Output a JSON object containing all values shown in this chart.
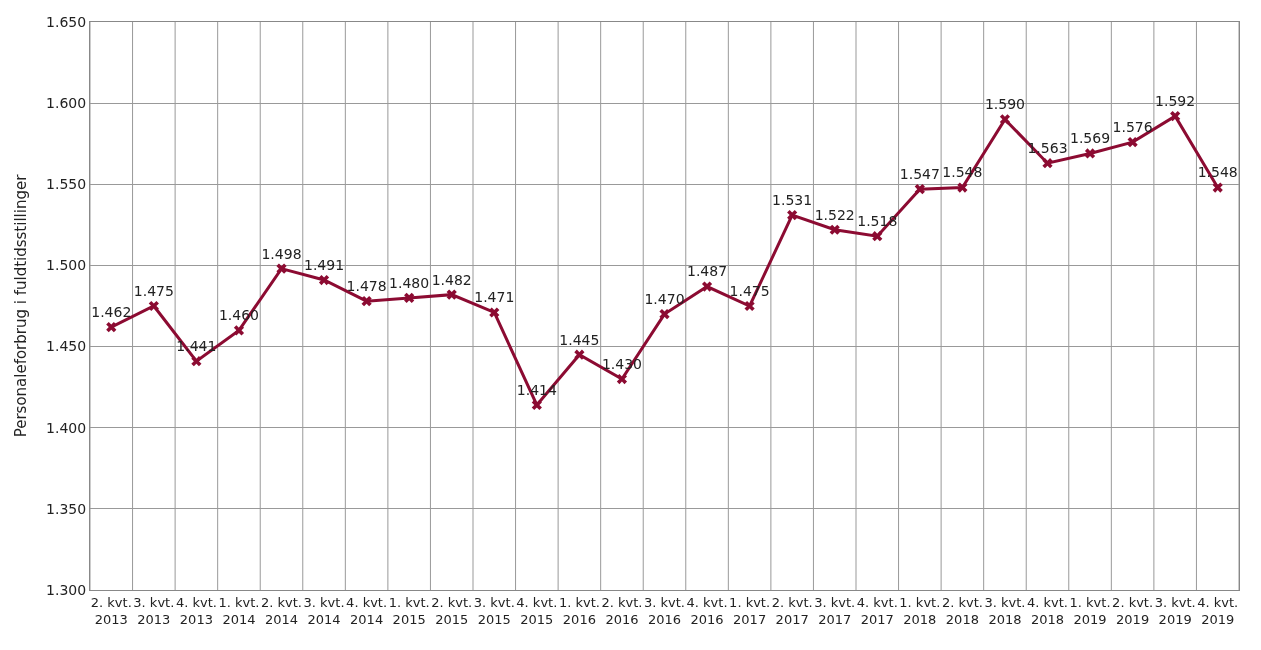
{
  "chart_data": {
    "type": "line",
    "ylabel": "Personaleforbrug i fuldtidsstillinger",
    "categories": [
      "2. kvt.\n2013",
      "3. kvt.\n2013",
      "4. kvt.\n2013",
      "1. kvt.\n2014",
      "2. kvt.\n2014",
      "3. kvt.\n2014",
      "4. kvt.\n2014",
      "1. kvt.\n2015",
      "2. kvt.\n2015",
      "3. kvt.\n2015",
      "4. kvt.\n2015",
      "1. kvt.\n2016",
      "2. kvt.\n2016",
      "3. kvt.\n2016",
      "4. kvt.\n2016",
      "1. kvt.\n2017",
      "2. kvt.\n2017",
      "3. kvt.\n2017",
      "4. kvt.\n2017",
      "1. kvt.\n2018",
      "2. kvt.\n2018",
      "3. kvt.\n2018",
      "4. kvt.\n2018",
      "1. kvt.\n2019",
      "2. kvt.\n2019",
      "3. kvt.\n2019",
      "4. kvt.\n2019"
    ],
    "series": [
      {
        "color": "#8c0b32",
        "values": [
          1462,
          1475,
          1441,
          1460,
          1498,
          1491,
          1478,
          1480,
          1482,
          1471,
          1414,
          1445,
          1430,
          1470,
          1487,
          1475,
          1531,
          1522,
          1518,
          1547,
          1548,
          1590,
          1563,
          1569,
          1576,
          1592,
          1548
        ],
        "value_labels": [
          "1.462",
          "1.475",
          "1.441",
          "1.460",
          "1.498",
          "1.491",
          "1.478",
          "1.480",
          "1.482",
          "1.471",
          "1.414",
          "1.445",
          "1.430",
          "1.470",
          "1.487",
          "1.475",
          "1.531",
          "1.522",
          "1.518",
          "1.547",
          "1.548",
          "1.590",
          "1.563",
          "1.569",
          "1.576",
          "1.592",
          "1.548"
        ]
      }
    ],
    "ylim": [
      1300,
      1650
    ],
    "yticks": [
      {
        "value": 1300,
        "label": "1.300"
      },
      {
        "value": 1350,
        "label": "1.350"
      },
      {
        "value": 1400,
        "label": "1.400"
      },
      {
        "value": 1450,
        "label": "1.450"
      },
      {
        "value": 1500,
        "label": "1.500"
      },
      {
        "value": 1550,
        "label": "1.550"
      },
      {
        "value": 1600,
        "label": "1.600"
      },
      {
        "value": 1650,
        "label": "1.650"
      }
    ],
    "grid": true,
    "legend": false,
    "marker": "cross",
    "line_style": "solid"
  }
}
